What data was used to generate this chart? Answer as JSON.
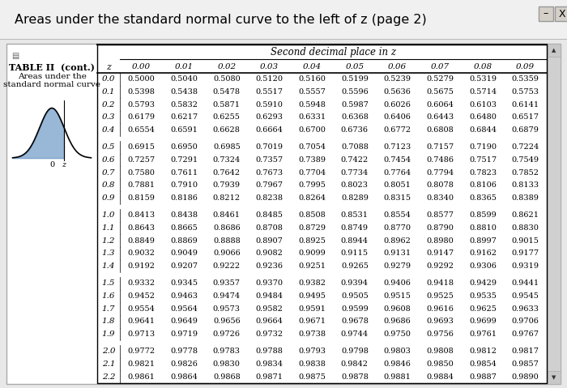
{
  "window_title": "Areas under the standard normal curve to the left of z (page 2)",
  "table_title_line1": "TABLE II  (cont.)",
  "table_title_line2": "Areas under the",
  "table_title_line3": "standard normal curve",
  "second_decimal_header": "Second decimal place in z",
  "col_headers": [
    "0.00",
    "0.01",
    "0.02",
    "0.03",
    "0.04",
    "0.05",
    "0.06",
    "0.07",
    "0.08",
    "0.09"
  ],
  "z_col_header": "z",
  "rows": [
    {
      "z": "0.0",
      "vals": [
        "0.5000",
        "0.5040",
        "0.5080",
        "0.5120",
        "0.5160",
        "0.5199",
        "0.5239",
        "0.5279",
        "0.5319",
        "0.5359"
      ]
    },
    {
      "z": "0.1",
      "vals": [
        "0.5398",
        "0.5438",
        "0.5478",
        "0.5517",
        "0.5557",
        "0.5596",
        "0.5636",
        "0.5675",
        "0.5714",
        "0.5753"
      ]
    },
    {
      "z": "0.2",
      "vals": [
        "0.5793",
        "0.5832",
        "0.5871",
        "0.5910",
        "0.5948",
        "0.5987",
        "0.6026",
        "0.6064",
        "0.6103",
        "0.6141"
      ]
    },
    {
      "z": "0.3",
      "vals": [
        "0.6179",
        "0.6217",
        "0.6255",
        "0.6293",
        "0.6331",
        "0.6368",
        "0.6406",
        "0.6443",
        "0.6480",
        "0.6517"
      ]
    },
    {
      "z": "0.4",
      "vals": [
        "0.6554",
        "0.6591",
        "0.6628",
        "0.6664",
        "0.6700",
        "0.6736",
        "0.6772",
        "0.6808",
        "0.6844",
        "0.6879"
      ]
    },
    {
      "z": "0.5",
      "vals": [
        "0.6915",
        "0.6950",
        "0.6985",
        "0.7019",
        "0.7054",
        "0.7088",
        "0.7123",
        "0.7157",
        "0.7190",
        "0.7224"
      ]
    },
    {
      "z": "0.6",
      "vals": [
        "0.7257",
        "0.7291",
        "0.7324",
        "0.7357",
        "0.7389",
        "0.7422",
        "0.7454",
        "0.7486",
        "0.7517",
        "0.7549"
      ]
    },
    {
      "z": "0.7",
      "vals": [
        "0.7580",
        "0.7611",
        "0.7642",
        "0.7673",
        "0.7704",
        "0.7734",
        "0.7764",
        "0.7794",
        "0.7823",
        "0.7852"
      ]
    },
    {
      "z": "0.8",
      "vals": [
        "0.7881",
        "0.7910",
        "0.7939",
        "0.7967",
        "0.7995",
        "0.8023",
        "0.8051",
        "0.8078",
        "0.8106",
        "0.8133"
      ]
    },
    {
      "z": "0.9",
      "vals": [
        "0.8159",
        "0.8186",
        "0.8212",
        "0.8238",
        "0.8264",
        "0.8289",
        "0.8315",
        "0.8340",
        "0.8365",
        "0.8389"
      ]
    },
    {
      "z": "1.0",
      "vals": [
        "0.8413",
        "0.8438",
        "0.8461",
        "0.8485",
        "0.8508",
        "0.8531",
        "0.8554",
        "0.8577",
        "0.8599",
        "0.8621"
      ]
    },
    {
      "z": "1.1",
      "vals": [
        "0.8643",
        "0.8665",
        "0.8686",
        "0.8708",
        "0.8729",
        "0.8749",
        "0.8770",
        "0.8790",
        "0.8810",
        "0.8830"
      ]
    },
    {
      "z": "1.2",
      "vals": [
        "0.8849",
        "0.8869",
        "0.8888",
        "0.8907",
        "0.8925",
        "0.8944",
        "0.8962",
        "0.8980",
        "0.8997",
        "0.9015"
      ]
    },
    {
      "z": "1.3",
      "vals": [
        "0.9032",
        "0.9049",
        "0.9066",
        "0.9082",
        "0.9099",
        "0.9115",
        "0.9131",
        "0.9147",
        "0.9162",
        "0.9177"
      ]
    },
    {
      "z": "1.4",
      "vals": [
        "0.9192",
        "0.9207",
        "0.9222",
        "0.9236",
        "0.9251",
        "0.9265",
        "0.9279",
        "0.9292",
        "0.9306",
        "0.9319"
      ]
    },
    {
      "z": "1.5",
      "vals": [
        "0.9332",
        "0.9345",
        "0.9357",
        "0.9370",
        "0.9382",
        "0.9394",
        "0.9406",
        "0.9418",
        "0.9429",
        "0.9441"
      ]
    },
    {
      "z": "1.6",
      "vals": [
        "0.9452",
        "0.9463",
        "0.9474",
        "0.9484",
        "0.9495",
        "0.9505",
        "0.9515",
        "0.9525",
        "0.9535",
        "0.9545"
      ]
    },
    {
      "z": "1.7",
      "vals": [
        "0.9554",
        "0.9564",
        "0.9573",
        "0.9582",
        "0.9591",
        "0.9599",
        "0.9608",
        "0.9616",
        "0.9625",
        "0.9633"
      ]
    },
    {
      "z": "1.8",
      "vals": [
        "0.9641",
        "0.9649",
        "0.9656",
        "0.9664",
        "0.9671",
        "0.9678",
        "0.9686",
        "0.9693",
        "0.9699",
        "0.9706"
      ]
    },
    {
      "z": "1.9",
      "vals": [
        "0.9713",
        "0.9719",
        "0.9726",
        "0.9732",
        "0.9738",
        "0.9744",
        "0.9750",
        "0.9756",
        "0.9761",
        "0.9767"
      ]
    },
    {
      "z": "2.0",
      "vals": [
        "0.9772",
        "0.9778",
        "0.9783",
        "0.9788",
        "0.9793",
        "0.9798",
        "0.9803",
        "0.9808",
        "0.9812",
        "0.9817"
      ]
    },
    {
      "z": "2.1",
      "vals": [
        "0.9821",
        "0.9826",
        "0.9830",
        "0.9834",
        "0.9838",
        "0.9842",
        "0.9846",
        "0.9850",
        "0.9854",
        "0.9857"
      ]
    },
    {
      "z": "2.2",
      "vals": [
        "0.9861",
        "0.9864",
        "0.9868",
        "0.9871",
        "0.9875",
        "0.9878",
        "0.9881",
        "0.9884",
        "0.9887",
        "0.9890"
      ]
    }
  ],
  "group_gaps_after": [
    4,
    9,
    14,
    19
  ],
  "outer_bg": "#e8e8e8",
  "title_bar_bg": "#f0f0f0",
  "inner_bg": "#ffffff",
  "scrollbar_bg": "#c8c8c8",
  "scrollbar_thumb": "#a0a0a0"
}
